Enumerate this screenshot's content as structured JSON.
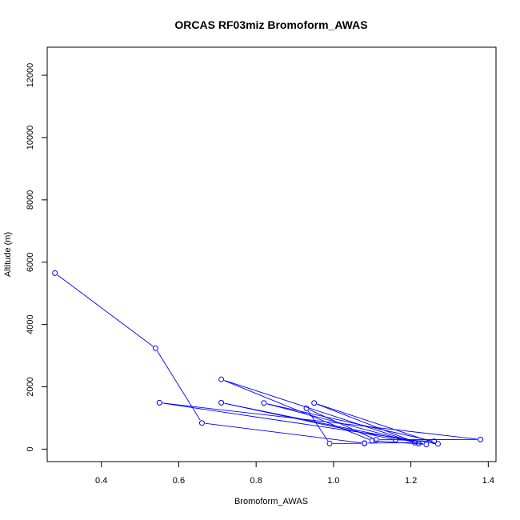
{
  "chart_data": {
    "type": "line",
    "title": "ORCAS RF03miz Bromoform_AWAS",
    "xlabel": "Bromoform_AWAS",
    "ylabel": "Altitude (m)",
    "xlim": [
      0.26,
      1.42
    ],
    "ylim": [
      -400,
      12900
    ],
    "xticks": [
      0.4,
      0.6,
      0.8,
      1.0,
      1.2,
      1.4
    ],
    "xtick_labels": [
      "0.4",
      "0.6",
      "0.8",
      "1.0",
      "1.2",
      "1.4"
    ],
    "yticks": [
      0,
      2000,
      4000,
      6000,
      8000,
      10000,
      12000
    ],
    "ytick_labels": [
      "0",
      "2000",
      "4000",
      "6000",
      "8000",
      "10000",
      "12000"
    ],
    "grid": false,
    "series": [
      {
        "color": "#0000ff",
        "marker": "open-circle",
        "points": [
          {
            "x": 0.28,
            "y": 5650
          },
          {
            "x": 0.54,
            "y": 3240
          },
          {
            "x": 0.66,
            "y": 840
          },
          {
            "x": 1.08,
            "y": 190
          },
          {
            "x": 1.21,
            "y": 210
          },
          {
            "x": 0.71,
            "y": 2240
          },
          {
            "x": 1.1,
            "y": 270
          },
          {
            "x": 1.24,
            "y": 150
          },
          {
            "x": 0.71,
            "y": 1490
          },
          {
            "x": 1.16,
            "y": 300
          },
          {
            "x": 1.26,
            "y": 250
          },
          {
            "x": 0.82,
            "y": 1480
          },
          {
            "x": 1.22,
            "y": 180
          },
          {
            "x": 0.95,
            "y": 1480
          },
          {
            "x": 1.27,
            "y": 170
          },
          {
            "x": 0.55,
            "y": 1490
          },
          {
            "x": 1.38,
            "y": 310
          },
          {
            "x": 1.11,
            "y": 300
          },
          {
            "x": 0.93,
            "y": 1310
          },
          {
            "x": 0.99,
            "y": 180
          },
          {
            "x": 1.08,
            "y": 185
          }
        ]
      }
    ]
  }
}
